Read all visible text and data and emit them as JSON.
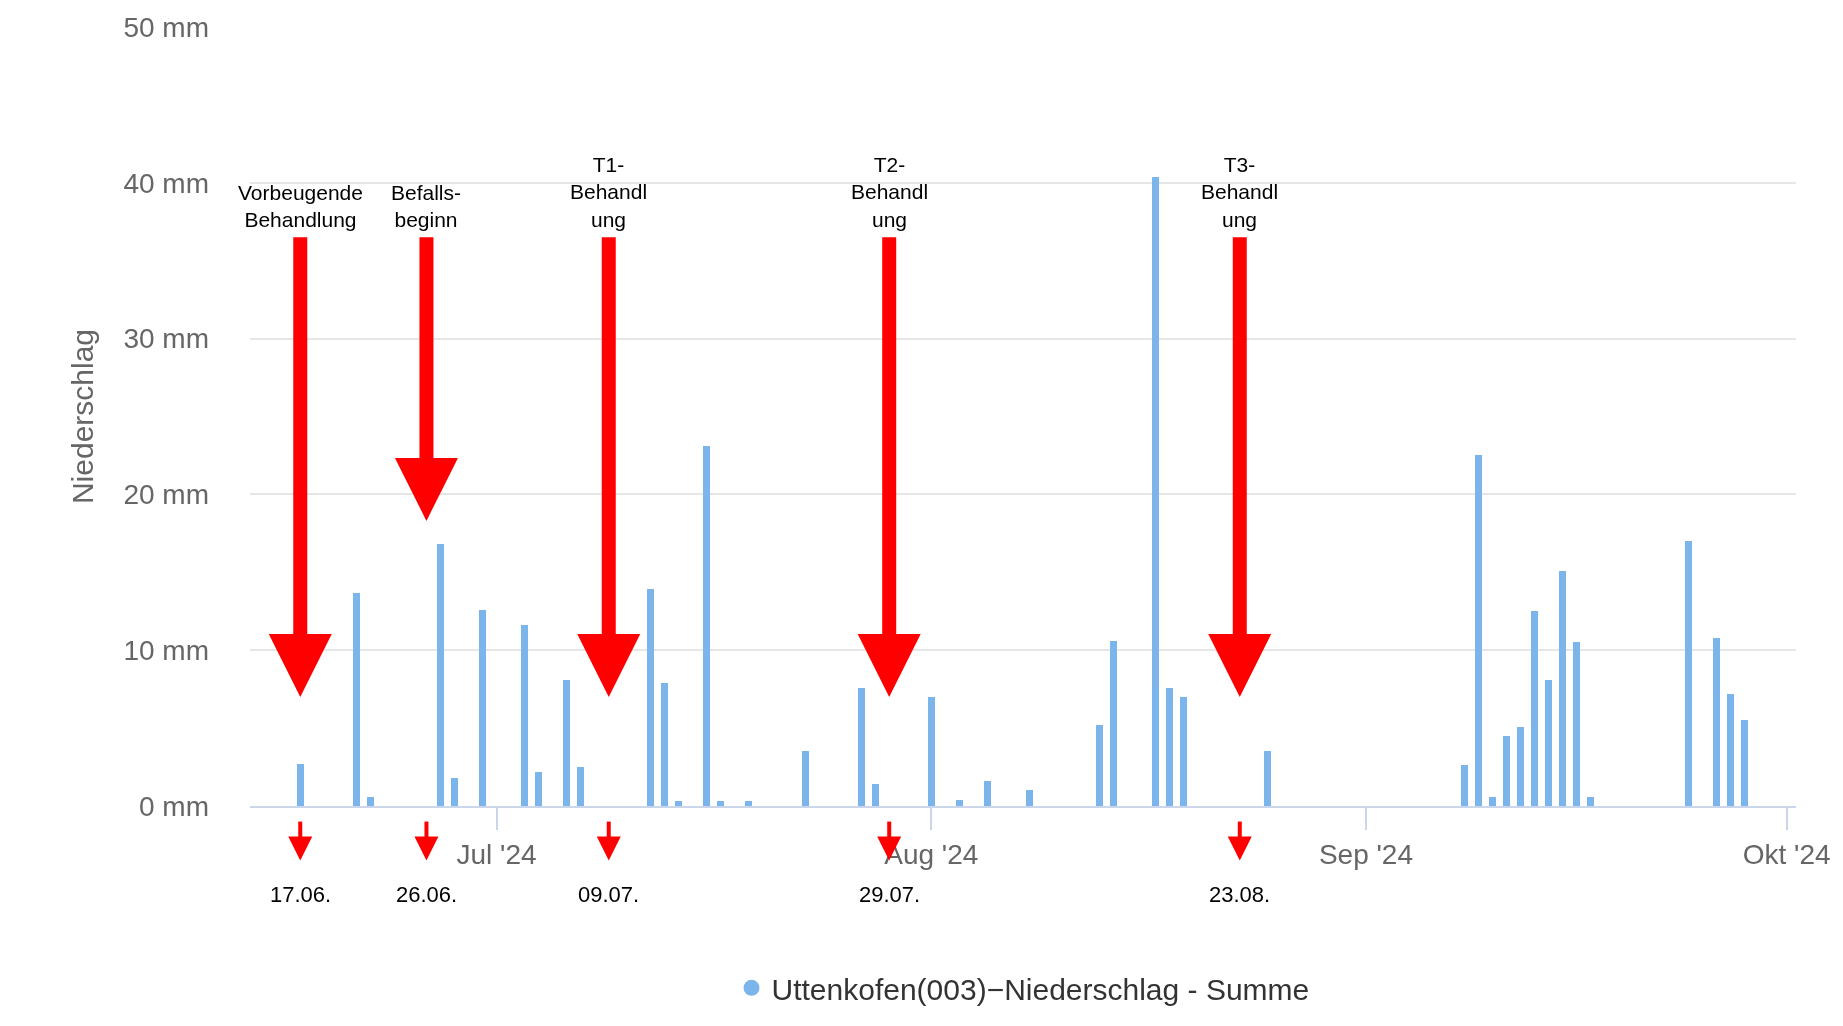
{
  "chart_data": {
    "type": "bar",
    "ylabel": "Niederschlag",
    "legend": "bottom",
    "grid": "y",
    "x": [
      "2024-06-17",
      "2024-06-21",
      "2024-06-22",
      "2024-06-27",
      "2024-06-28",
      "2024-06-30",
      "2024-07-03",
      "2024-07-04",
      "2024-07-06",
      "2024-07-07",
      "2024-07-12",
      "2024-07-13",
      "2024-07-14",
      "2024-07-16",
      "2024-07-17",
      "2024-07-19",
      "2024-07-23",
      "2024-07-27",
      "2024-07-28",
      "2024-08-01",
      "2024-08-03",
      "2024-08-05",
      "2024-08-08",
      "2024-08-13",
      "2024-08-14",
      "2024-08-17",
      "2024-08-18",
      "2024-08-19",
      "2024-08-25",
      "2024-09-08",
      "2024-09-09",
      "2024-09-10",
      "2024-09-11",
      "2024-09-12",
      "2024-09-13",
      "2024-09-14",
      "2024-09-15",
      "2024-09-16",
      "2024-09-17",
      "2024-09-24",
      "2024-09-26",
      "2024-09-27",
      "2024-09-28"
    ],
    "series": [
      {
        "name": "Uttenkofen(003)−Niederschlag - Summe",
        "color": "#7cb5ec",
        "values": [
          2.7,
          13.7,
          0.6,
          16.8,
          1.8,
          12.6,
          11.6,
          2.2,
          8.1,
          2.5,
          13.9,
          7.9,
          0.3,
          23.1,
          0.3,
          0.3,
          3.5,
          7.6,
          1.4,
          7.0,
          0.4,
          1.6,
          1.0,
          5.2,
          10.6,
          40.4,
          7.6,
          7.0,
          3.5,
          2.6,
          22.5,
          0.6,
          4.5,
          5.1,
          12.5,
          8.1,
          15.1,
          10.5,
          0.6,
          17.0,
          10.8,
          7.2,
          5.5
        ]
      }
    ],
    "xlim": [
      "2024-06-13T10:00",
      "2024-10-01T16:00"
    ],
    "xticks": [
      {
        "value": "2024-07-01",
        "label": "Jul '24"
      },
      {
        "value": "2024-08-01",
        "label": "Aug '24"
      },
      {
        "value": "2024-09-01",
        "label": "Sep '24"
      },
      {
        "value": "2024-10-01",
        "label": "Okt '24"
      }
    ],
    "ylim": [
      0,
      50
    ],
    "yticks": [
      {
        "value": 0,
        "label": "0 mm"
      },
      {
        "value": 10,
        "label": "10 mm"
      },
      {
        "value": 20,
        "label": "20 mm"
      },
      {
        "value": 30,
        "label": "30 mm"
      },
      {
        "value": 40,
        "label": "40 mm"
      },
      {
        "value": 50,
        "label": "50 mm"
      }
    ],
    "annotations": [
      "17.06.",
      "26.06.",
      "09.07.",
      "29.07.",
      "23.08."
    ],
    "ref_lines": [
      {
        "axis": "x",
        "value": "2024-06-17",
        "label": "Vorbeugende\nBehandlung",
        "color": "#ff0000"
      },
      {
        "axis": "x",
        "value": "2024-06-26",
        "label": "Befalls-\nbeginn",
        "color": "#ff0000"
      },
      {
        "axis": "x",
        "value": "2024-07-09",
        "label": "T1-\nBehandl\nung",
        "color": "#ff0000"
      },
      {
        "axis": "x",
        "value": "2024-07-29",
        "label": "T2-\nBehandl\nung",
        "color": "#ff0000"
      },
      {
        "axis": "x",
        "value": "2024-08-23",
        "label": "T3-\nBehandl\nung",
        "color": "#ff0000"
      }
    ]
  }
}
